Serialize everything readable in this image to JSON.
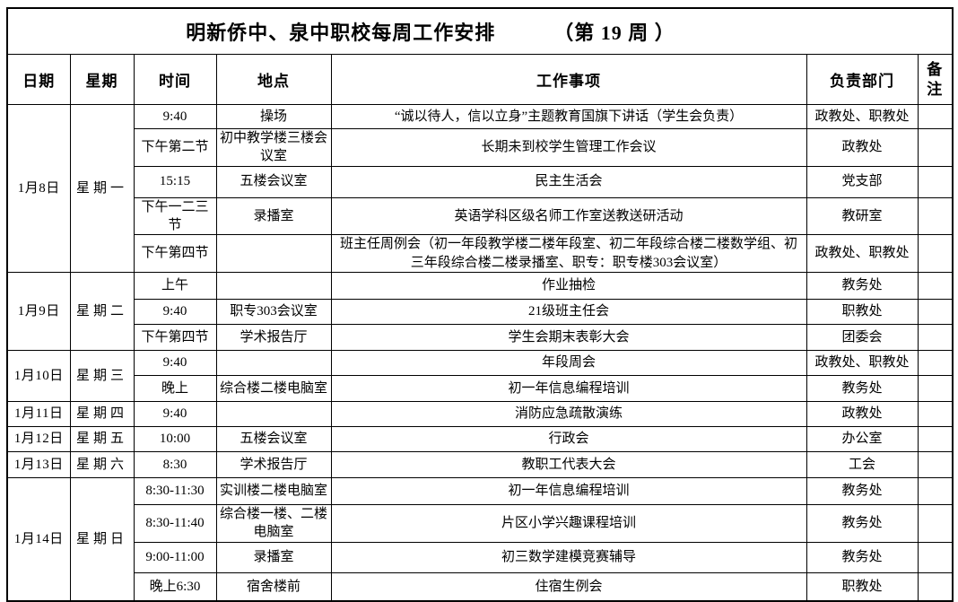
{
  "title": {
    "main": "明新侨中、泉中职校每周工作安排",
    "week": "（第 19 周 ）"
  },
  "headers": {
    "date": "日期",
    "week": "星期",
    "time": "时间",
    "location": "地点",
    "task": "工作事项",
    "department": "负责部门",
    "remark": "备注"
  },
  "days": [
    {
      "date": "1月8日",
      "week": "星期一",
      "rows": [
        {
          "time": "9:40",
          "location": "操场",
          "task": "“诚以待人，信以立身”主题教育国旗下讲话（学生会负责）",
          "department": "政教处、职教处",
          "remark": ""
        },
        {
          "time": "下午第二节",
          "location": "初中教学楼三楼会议室",
          "task": "长期未到校学生管理工作会议",
          "department": "政教处",
          "remark": ""
        },
        {
          "time": "15:15",
          "location": "五楼会议室",
          "task": "民主生活会",
          "department": "党支部",
          "remark": ""
        },
        {
          "time": "下午一二三节",
          "location": "录播室",
          "task": "英语学科区级名师工作室送教送研活动",
          "department": "教研室",
          "remark": ""
        },
        {
          "time": "下午第四节",
          "location": "",
          "task": "班主任周例会（初一年段教学楼二楼年段室、初二年段综合楼二楼数学组、初三年段综合楼二楼录播室、职专：职专楼303会议室）",
          "department": "政教处、职教处",
          "remark": ""
        }
      ]
    },
    {
      "date": "1月9日",
      "week": "星期二",
      "rows": [
        {
          "time": "上午",
          "location": "",
          "task": "作业抽检",
          "department": "教务处",
          "remark": ""
        },
        {
          "time": "9:40",
          "location": "职专303会议室",
          "task": "21级班主任会",
          "department": "职教处",
          "remark": ""
        },
        {
          "time": "下午第四节",
          "location": "学术报告厅",
          "task": "学生会期末表彰大会",
          "department": "团委会",
          "remark": ""
        }
      ]
    },
    {
      "date": "1月10日",
      "week": "星期三",
      "rows": [
        {
          "time": "9:40",
          "location": "",
          "task": "年段周会",
          "department": "政教处、职教处",
          "remark": ""
        },
        {
          "time": "晚上",
          "location": "综合楼二楼电脑室",
          "task": "初一年信息编程培训",
          "department": "教务处",
          "remark": ""
        }
      ]
    },
    {
      "date": "1月11日",
      "week": "星期四",
      "rows": [
        {
          "time": "9:40",
          "location": "",
          "task": "消防应急疏散演练",
          "department": "政教处",
          "remark": ""
        }
      ]
    },
    {
      "date": "1月12日",
      "week": "星期五",
      "rows": [
        {
          "time": "10:00",
          "location": "五楼会议室",
          "task": "行政会",
          "department": "办公室",
          "remark": ""
        }
      ]
    },
    {
      "date": "1月13日",
      "week": "星期六",
      "rows": [
        {
          "time": "8:30",
          "location": "学术报告厅",
          "task": "教职工代表大会",
          "department": "工会",
          "remark": ""
        }
      ]
    },
    {
      "date": "1月14日",
      "week": "星期日",
      "rows": [
        {
          "time": "8:30-11:30",
          "location": "实训楼二楼电脑室",
          "task": "初一年信息编程培训",
          "department": "教务处",
          "remark": ""
        },
        {
          "time": "8:30-11:40",
          "location": "综合楼一楼、二楼电脑室",
          "task": "片区小学兴趣课程培训",
          "department": "教务处",
          "remark": ""
        },
        {
          "time": "9:00-11:00",
          "location": "录播室",
          "task": "初三数学建模竞赛辅导",
          "department": "教务处",
          "remark": ""
        },
        {
          "time": "晚上6:30",
          "location": "宿舍楼前",
          "task": "住宿生例会",
          "department": "职教处",
          "remark": ""
        }
      ]
    }
  ]
}
